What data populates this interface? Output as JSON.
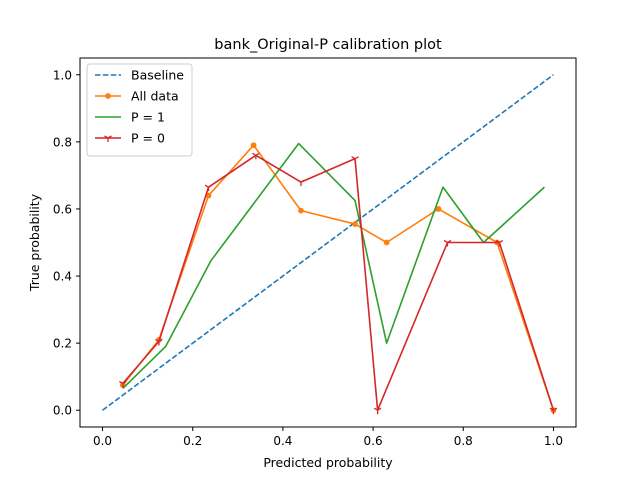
{
  "chart_data": {
    "type": "line",
    "title": "bank_Original-P calibration plot",
    "xlabel": "Predicted probability",
    "ylabel": "True probability",
    "xlim": [
      -0.05,
      1.05
    ],
    "ylim": [
      -0.05,
      1.05
    ],
    "xticks": [
      "0.0",
      "0.2",
      "0.4",
      "0.6",
      "0.8",
      "1.0"
    ],
    "yticks": [
      "0.0",
      "0.2",
      "0.4",
      "0.6",
      "0.8",
      "1.0"
    ],
    "grid": false,
    "legend_position": "top-left",
    "series": [
      {
        "name": "Baseline",
        "color": "#1f77b4",
        "line_style": "dashed",
        "marker": "none",
        "x": [
          0.0,
          1.0
        ],
        "y": [
          0.0,
          1.0
        ]
      },
      {
        "name": "All data",
        "color": "#ff7f0e",
        "line_style": "solid",
        "marker": "point",
        "x": [
          0.045,
          0.125,
          0.235,
          0.335,
          0.44,
          0.56,
          0.63,
          0.745,
          0.875,
          1.0
        ],
        "y": [
          0.075,
          0.21,
          0.64,
          0.79,
          0.595,
          0.555,
          0.5,
          0.6,
          0.5,
          0.0
        ]
      },
      {
        "name": "P = 1",
        "color": "#2ca02c",
        "line_style": "solid",
        "marker": "none",
        "x": [
          0.045,
          0.14,
          0.24,
          0.435,
          0.56,
          0.63,
          0.755,
          0.845,
          0.98
        ],
        "y": [
          0.065,
          0.19,
          0.445,
          0.795,
          0.625,
          0.2,
          0.665,
          0.5,
          0.665
        ]
      },
      {
        "name": "P = 0",
        "color": "#d62728",
        "line_style": "solid",
        "marker": "tri_down",
        "x": [
          0.045,
          0.125,
          0.235,
          0.34,
          0.44,
          0.56,
          0.61,
          0.765,
          0.88,
          1.0
        ],
        "y": [
          0.08,
          0.205,
          0.665,
          0.76,
          0.68,
          0.75,
          0.0,
          0.5,
          0.5,
          0.0
        ]
      }
    ]
  }
}
